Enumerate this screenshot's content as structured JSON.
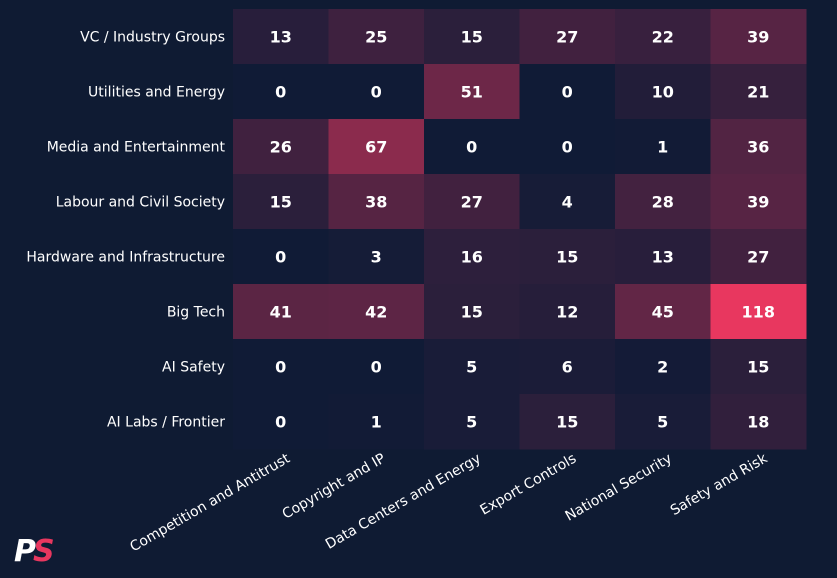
{
  "chart_data": {
    "type": "heatmap",
    "title": "",
    "xlabel": "",
    "ylabel": "",
    "rows": [
      "VC / Industry Groups",
      "Utilities and Energy",
      "Media and Entertainment",
      "Labour and Civil Society",
      "Hardware and Infrastructure",
      "Big Tech",
      "AI Safety",
      "AI Labs / Frontier"
    ],
    "columns": [
      "Competition and Antitrust",
      "Copyright and IP",
      "Data Centers and Energy",
      "Export Controls",
      "National Security",
      "Safety and Risk"
    ],
    "values": [
      [
        13,
        25,
        15,
        27,
        22,
        39
      ],
      [
        0,
        0,
        51,
        0,
        10,
        21
      ],
      [
        26,
        67,
        0,
        0,
        1,
        36
      ],
      [
        15,
        38,
        27,
        4,
        28,
        39
      ],
      [
        0,
        3,
        16,
        15,
        13,
        27
      ],
      [
        41,
        42,
        15,
        12,
        45,
        118
      ],
      [
        0,
        0,
        5,
        6,
        2,
        15
      ],
      [
        0,
        1,
        5,
        15,
        5,
        18
      ]
    ],
    "color_scale": {
      "low": "#101b36",
      "high": "#e8375f",
      "min": 0,
      "max": 118
    },
    "legend": "none",
    "grid": false
  },
  "logo": {
    "text": "PS"
  },
  "colors": {
    "background": "#0f1b33",
    "text": "#ffffff",
    "accent": "#e8375f"
  }
}
